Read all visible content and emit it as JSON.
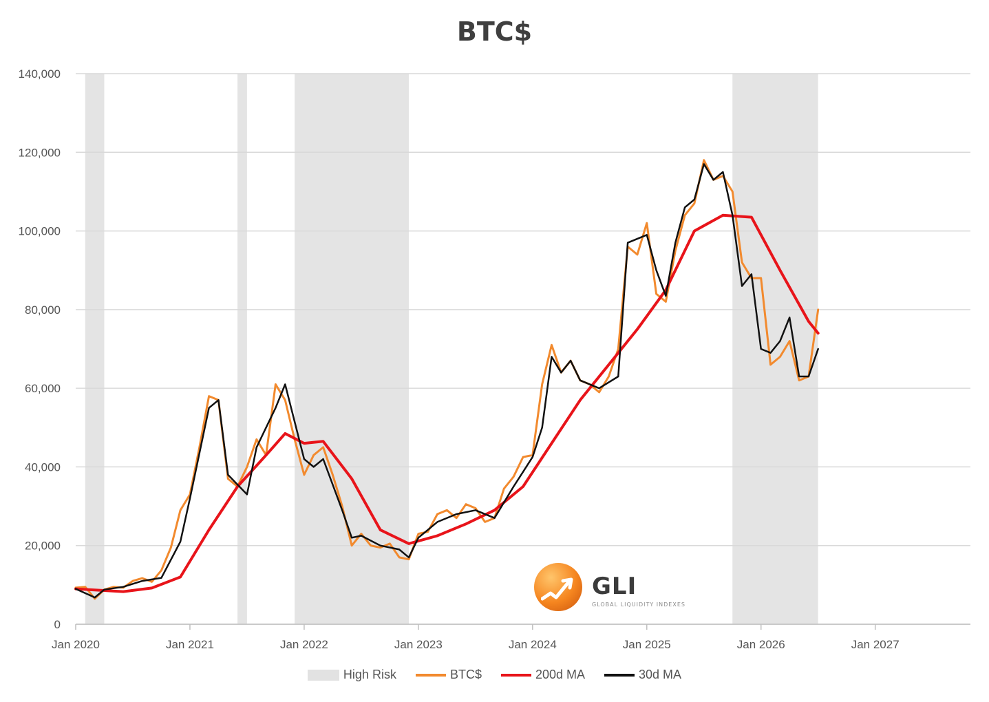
{
  "chart_data": {
    "type": "line",
    "title": "BTC$",
    "xlabel": "",
    "ylabel": "",
    "ylim": [
      0,
      140000
    ],
    "xlim": [
      "2020-01",
      "2027-11"
    ],
    "y_ticks": [
      0,
      20000,
      40000,
      60000,
      80000,
      100000,
      120000,
      140000
    ],
    "y_tick_labels": [
      "0",
      "20,000",
      "40,000",
      "60,000",
      "80,000",
      "100,000",
      "120,000",
      "140,000"
    ],
    "x_tick_labels": [
      "Jan 2020",
      "Jan 2021",
      "Jan 2022",
      "Jan 2023",
      "Jan 2024",
      "Jan 2025",
      "Jan 2026",
      "Jan 2027"
    ],
    "grid": "horizontal",
    "legend_position": "bottom",
    "high_risk_periods": [
      {
        "start": "2020-02",
        "end": "2020-04"
      },
      {
        "start": "2021-06",
        "end": "2021-07"
      },
      {
        "start": "2021-12",
        "end": "2022-12"
      },
      {
        "start": "2025-10",
        "end": "2026-07"
      }
    ],
    "series": [
      {
        "name": "BTC$",
        "color": "#f28a2e",
        "x": [
          "2020-01",
          "2020-02",
          "2020-03",
          "2020-04",
          "2020-05",
          "2020-06",
          "2020-07",
          "2020-08",
          "2020-09",
          "2020-10",
          "2020-11",
          "2020-12",
          "2021-01",
          "2021-02",
          "2021-03",
          "2021-04",
          "2021-05",
          "2021-06",
          "2021-07",
          "2021-08",
          "2021-09",
          "2021-10",
          "2021-11",
          "2021-12",
          "2022-01",
          "2022-02",
          "2022-03",
          "2022-04",
          "2022-05",
          "2022-06",
          "2022-07",
          "2022-08",
          "2022-09",
          "2022-10",
          "2022-11",
          "2022-12",
          "2023-01",
          "2023-02",
          "2023-03",
          "2023-04",
          "2023-05",
          "2023-06",
          "2023-07",
          "2023-08",
          "2023-09",
          "2023-10",
          "2023-11",
          "2023-12",
          "2024-01",
          "2024-02",
          "2024-03",
          "2024-04",
          "2024-05",
          "2024-06",
          "2024-07",
          "2024-08",
          "2024-09",
          "2024-10",
          "2024-11",
          "2024-12",
          "2025-01",
          "2025-02",
          "2025-03",
          "2025-04",
          "2025-05",
          "2025-06",
          "2025-07",
          "2025-08",
          "2025-09",
          "2025-10",
          "2025-11",
          "2025-12",
          "2026-01",
          "2026-02",
          "2026-03",
          "2026-04",
          "2026-05",
          "2026-06",
          "2026-07"
        ],
        "values": [
          9300,
          9500,
          6500,
          8800,
          9500,
          9300,
          11000,
          11700,
          10800,
          13700,
          19500,
          29000,
          33000,
          45000,
          58000,
          57000,
          37000,
          35000,
          40000,
          47000,
          43000,
          61000,
          57000,
          47000,
          38000,
          43000,
          45000,
          38000,
          30000,
          20000,
          23000,
          20000,
          19500,
          20500,
          17000,
          16500,
          23000,
          23500,
          28000,
          29000,
          27000,
          30500,
          29500,
          26000,
          27000,
          34500,
          37500,
          42500,
          43000,
          61000,
          71000,
          64000,
          67000,
          62000,
          61000,
          59000,
          63000,
          70000,
          96000,
          94000,
          102000,
          84000,
          82000,
          95000,
          104000,
          107000,
          118000,
          113000,
          114000,
          110000,
          92000,
          88000,
          88000,
          66000,
          68000,
          72000,
          62000,
          63000,
          80000
        ]
      },
      {
        "name": "200d MA",
        "color": "#e8141a",
        "x": [
          "2020-01",
          "2020-06",
          "2020-09",
          "2020-12",
          "2021-03",
          "2021-06",
          "2021-09",
          "2021-11",
          "2022-01",
          "2022-03",
          "2022-06",
          "2022-09",
          "2022-12",
          "2023-03",
          "2023-06",
          "2023-09",
          "2023-12",
          "2024-03",
          "2024-06",
          "2024-09",
          "2024-12",
          "2025-03",
          "2025-06",
          "2025-09",
          "2025-12",
          "2026-03",
          "2026-06",
          "2026-07"
        ],
        "values": [
          9000,
          8300,
          9200,
          12000,
          24000,
          35000,
          43000,
          48500,
          46000,
          46500,
          37000,
          24000,
          20500,
          22500,
          25500,
          29000,
          35000,
          46000,
          57000,
          66000,
          75000,
          85000,
          100000,
          104000,
          103500,
          90000,
          77000,
          74000
        ]
      },
      {
        "name": "30d MA",
        "color": "#111111",
        "x": [
          "2020-01",
          "2020-03",
          "2020-04",
          "2020-06",
          "2020-08",
          "2020-10",
          "2020-12",
          "2021-01",
          "2021-03",
          "2021-04",
          "2021-05",
          "2021-07",
          "2021-08",
          "2021-10",
          "2021-11",
          "2022-01",
          "2022-02",
          "2022-03",
          "2022-05",
          "2022-06",
          "2022-07",
          "2022-09",
          "2022-11",
          "2022-12",
          "2023-01",
          "2023-03",
          "2023-05",
          "2023-07",
          "2023-09",
          "2023-11",
          "2024-01",
          "2024-02",
          "2024-03",
          "2024-04",
          "2024-05",
          "2024-06",
          "2024-08",
          "2024-10",
          "2024-11",
          "2025-01",
          "2025-02",
          "2025-03",
          "2025-04",
          "2025-05",
          "2025-06",
          "2025-07",
          "2025-08",
          "2025-09",
          "2025-10",
          "2025-11",
          "2025-12",
          "2026-01",
          "2026-02",
          "2026-03",
          "2026-04",
          "2026-05",
          "2026-06",
          "2026-07"
        ],
        "values": [
          9000,
          6800,
          8800,
          9500,
          11000,
          11800,
          21000,
          32000,
          55000,
          57000,
          38000,
          33000,
          45000,
          55000,
          61000,
          42000,
          40000,
          42000,
          29000,
          22000,
          22500,
          20000,
          19000,
          17000,
          22000,
          26000,
          28000,
          29000,
          27000,
          35000,
          42500,
          50000,
          68000,
          64000,
          67000,
          62000,
          60000,
          63000,
          97000,
          99000,
          90000,
          83500,
          97000,
          106000,
          108000,
          117000,
          113000,
          115000,
          104000,
          86000,
          89000,
          70000,
          69000,
          72000,
          78000,
          63000,
          63000,
          70000
        ]
      }
    ],
    "legend": [
      "High Risk",
      "BTC$",
      "200d MA",
      "30d MA"
    ]
  },
  "logo": {
    "name": "GLI",
    "subtitle": "GLOBAL LIQUIDITY INDEXES"
  }
}
